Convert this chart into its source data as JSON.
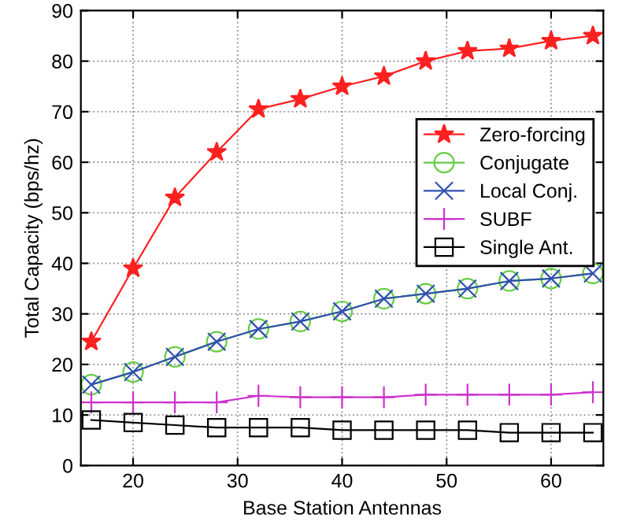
{
  "chart_data": {
    "type": "line",
    "xlabel": "Base Station Antennas",
    "ylabel": "Total Capacity (bps/hz)",
    "x": [
      16,
      20,
      24,
      28,
      32,
      36,
      40,
      44,
      48,
      52,
      56,
      60,
      64
    ],
    "xlim": [
      15,
      65
    ],
    "xticks": [
      20,
      30,
      40,
      50,
      60
    ],
    "ylim": [
      0,
      90
    ],
    "yticks": [
      0,
      10,
      20,
      30,
      40,
      50,
      60,
      70,
      80,
      90
    ],
    "grid": true,
    "legend": "right",
    "series": [
      {
        "name": "Zero-forcing",
        "color": "#ff2020",
        "marker": "star",
        "values": [
          24.5,
          39,
          53,
          62,
          70.5,
          72.5,
          75,
          77,
          80,
          82,
          82.5,
          84,
          85
        ]
      },
      {
        "name": "Conjugate",
        "color": "#66cc44",
        "marker": "circle",
        "values": [
          16,
          18.5,
          21.5,
          24.5,
          27,
          28.5,
          30.5,
          33,
          34,
          35,
          36.5,
          37,
          38
        ]
      },
      {
        "name": "Local Conj.",
        "color": "#3050b0",
        "marker": "cross",
        "values": [
          16,
          18.5,
          21.5,
          24.5,
          27,
          28.5,
          30.5,
          33,
          34,
          35,
          36.5,
          37,
          38
        ]
      },
      {
        "name": "SUBF",
        "color": "#cc33cc",
        "marker": "cross",
        "values": [
          12.5,
          12.5,
          12.5,
          12.5,
          13.8,
          13.5,
          13.5,
          13.5,
          14,
          14,
          14,
          14,
          14.5
        ]
      },
      {
        "name": "Single Ant.",
        "color": "#000000",
        "marker": "square",
        "values": [
          9,
          8.5,
          8,
          7.5,
          7.5,
          7.5,
          7,
          7,
          7,
          7,
          6.5,
          6.5,
          6.5
        ]
      }
    ]
  }
}
